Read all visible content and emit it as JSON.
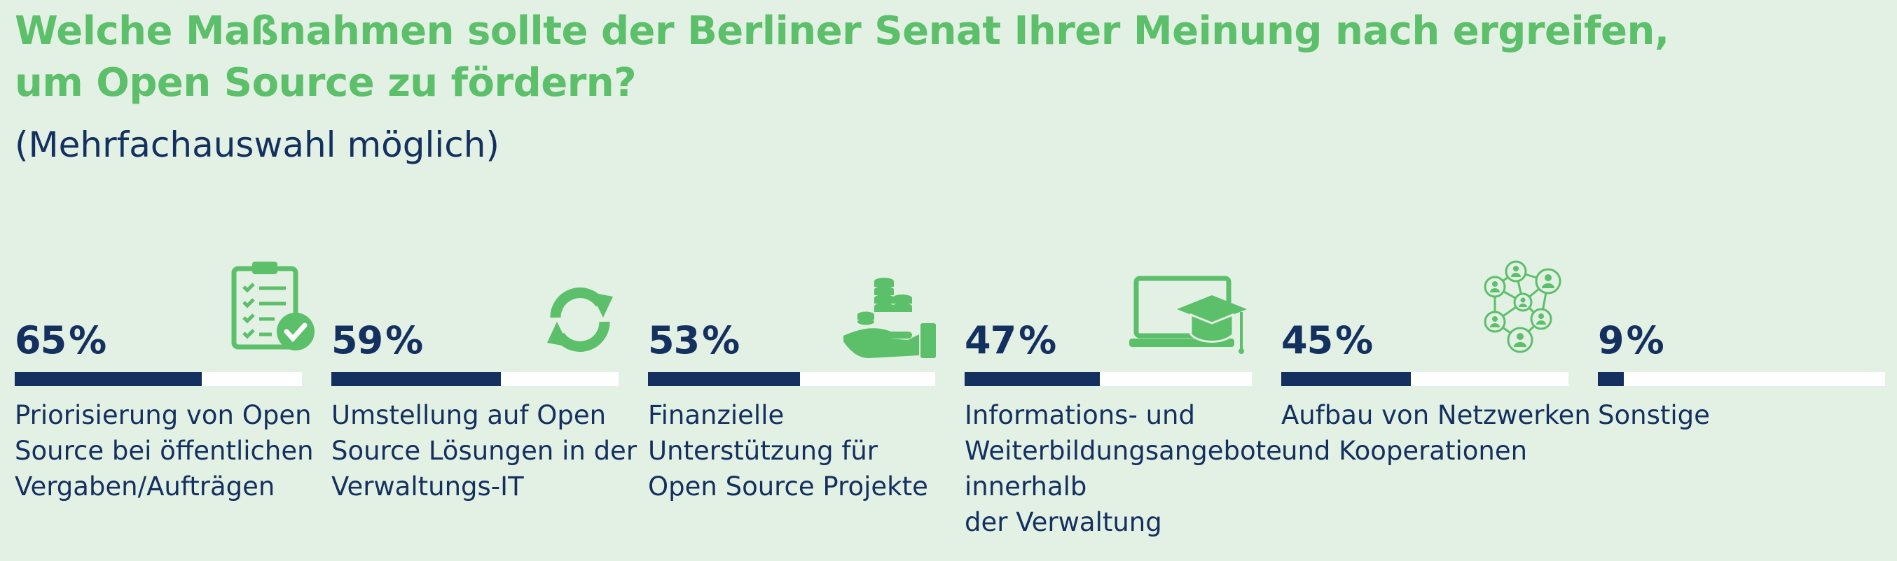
{
  "title_lines": [
    "Welche Maßnahmen sollte der Berliner Senat Ihrer Meinung nach ergreifen,",
    "um Open Source zu fördern?"
  ],
  "subtitle": "(Mehrfachauswahl möglich)",
  "colors": {
    "accent": "#5cbf6a",
    "bar": "#13305f",
    "track": "#ffffff",
    "background": "#e3f0e4"
  },
  "chart_data": {
    "type": "bar",
    "title": "Welche Maßnahmen sollte der Berliner Senat Ihrer Meinung nach ergreifen, um Open Source zu fördern?",
    "subtitle": "(Mehrfachauswahl möglich)",
    "unit": "%",
    "ylim": [
      0,
      100
    ],
    "categories": [
      "Priorisierung von Open Source bei öffentlichen Vergaben/Aufträgen",
      "Umstellung auf Open Source Lösungen in der Verwaltungs-IT",
      "Finanzielle Unterstützung für Open Source Projekte",
      "Informations- und Weiterbildungsangebote innerhalb der Verwaltung",
      "Aufbau von Netzwerken und Kooperationen",
      "Sonstige"
    ],
    "values": [
      65,
      59,
      53,
      47,
      45,
      9
    ],
    "items": [
      {
        "value": 65,
        "label_lines": [
          "Priorisierung von Open",
          "Source bei öffentlichen",
          "Vergaben/Aufträgen"
        ],
        "icon": "clipboard-check-icon"
      },
      {
        "value": 59,
        "label_lines": [
          "Umstellung auf Open",
          "Source Lösungen in der",
          "Verwaltungs-IT"
        ],
        "icon": "refresh-arrows-icon"
      },
      {
        "value": 53,
        "label_lines": [
          "Finanzielle",
          "Unterstützung für",
          "Open Source Projekte"
        ],
        "icon": "hand-coins-icon"
      },
      {
        "value": 47,
        "label_lines": [
          "Informations- und",
          "Weiterbildungsangebote",
          "innerhalb",
          "der Verwaltung"
        ],
        "icon": "laptop-graduation-cap-icon"
      },
      {
        "value": 45,
        "label_lines": [
          "Aufbau von Netzwerken",
          "und Kooperationen"
        ],
        "icon": "people-network-icon"
      },
      {
        "value": 9,
        "label_lines": [
          "Sonstige"
        ],
        "icon": ""
      }
    ]
  }
}
